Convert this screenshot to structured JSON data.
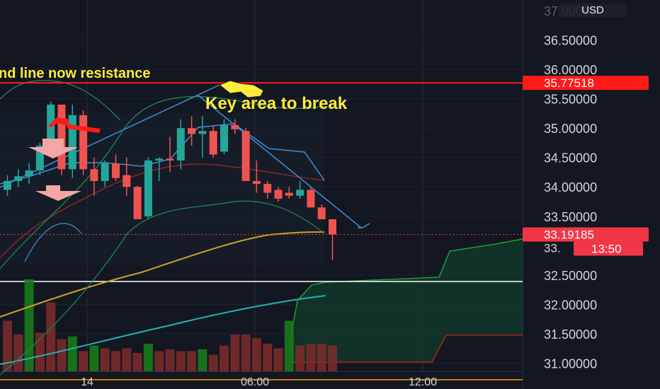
{
  "currency_button": "USD",
  "colors": {
    "background": "#131722",
    "bull_candle": "#26a69a",
    "bear_candle": "#ef5350",
    "resistance_line": "#ff1a1a",
    "annotation_text": "#ffeb3b",
    "trend_line": "#3f8fd6",
    "ma_orange": "#c9a227",
    "ma_teal": "#22b2b2",
    "cloud_fill": "#123a2b",
    "horizontal_line_white": "#ffffff",
    "horizontal_line_orange": "#ff9800",
    "current_price_label": "#f23645"
  },
  "annotations": {
    "trendline_text": "nd line now resistance",
    "key_area_text": "Key area to break"
  },
  "chart_data": {
    "type": "candlestick",
    "price_axis": {
      "range": [
        30.73,
        37.05
      ],
      "ticks": [
        "36.50000",
        "36.00000",
        "35.50000",
        "35.00000",
        "34.50000",
        "34.00000",
        "33.50000",
        "32.50000",
        "32.00000",
        "31.50000",
        "31.00000"
      ],
      "partial_top_tick": "37.00000"
    },
    "time_axis": {
      "ticks": [
        "14",
        "06:00",
        "12:00"
      ]
    },
    "resistance_level": {
      "value": 35.77,
      "label": "35.77518"
    },
    "current_price": {
      "value": 33.19,
      "label": "33.19185",
      "countdown": "13:50",
      "partial_label": "33."
    },
    "white_level": 32.39,
    "orange_level": 30.72,
    "candles": [
      {
        "o": 33.95,
        "h": 34.2,
        "l": 33.85,
        "c": 34.1
      },
      {
        "o": 34.1,
        "h": 34.3,
        "l": 34.0,
        "c": 34.18
      },
      {
        "o": 34.18,
        "h": 34.4,
        "l": 34.05,
        "c": 34.28
      },
      {
        "o": 34.28,
        "h": 34.75,
        "l": 34.2,
        "c": 34.7
      },
      {
        "o": 34.7,
        "h": 35.45,
        "l": 34.6,
        "c": 35.4
      },
      {
        "o": 35.4,
        "h": 35.4,
        "l": 34.2,
        "c": 34.3
      },
      {
        "o": 34.3,
        "h": 35.4,
        "l": 34.15,
        "c": 35.22
      },
      {
        "o": 35.22,
        "h": 35.3,
        "l": 34.2,
        "c": 34.3
      },
      {
        "o": 34.3,
        "h": 34.5,
        "l": 33.85,
        "c": 34.1
      },
      {
        "o": 34.1,
        "h": 34.45,
        "l": 34.0,
        "c": 34.4
      },
      {
        "o": 34.4,
        "h": 34.55,
        "l": 34.1,
        "c": 34.15
      },
      {
        "o": 34.2,
        "h": 34.5,
        "l": 33.85,
        "c": 34.0
      },
      {
        "o": 34.0,
        "h": 34.02,
        "l": 33.45,
        "c": 33.45
      },
      {
        "o": 33.5,
        "h": 34.5,
        "l": 33.45,
        "c": 34.45
      },
      {
        "o": 34.45,
        "h": 34.5,
        "l": 34.1,
        "c": 34.48
      },
      {
        "o": 34.48,
        "h": 34.85,
        "l": 34.25,
        "c": 34.45
      },
      {
        "o": 34.45,
        "h": 35.15,
        "l": 34.3,
        "c": 35.0
      },
      {
        "o": 35.0,
        "h": 35.2,
        "l": 34.7,
        "c": 34.9
      },
      {
        "o": 34.9,
        "h": 35.2,
        "l": 34.5,
        "c": 34.95
      },
      {
        "o": 34.95,
        "h": 35.05,
        "l": 34.5,
        "c": 34.55
      },
      {
        "o": 34.6,
        "h": 35.15,
        "l": 34.55,
        "c": 35.05
      },
      {
        "o": 35.05,
        "h": 35.15,
        "l": 34.9,
        "c": 34.98
      },
      {
        "o": 34.95,
        "h": 35.0,
        "l": 34.1,
        "c": 34.1
      },
      {
        "o": 34.1,
        "h": 34.45,
        "l": 33.9,
        "c": 34.05
      },
      {
        "o": 34.05,
        "h": 34.1,
        "l": 33.8,
        "c": 33.9
      },
      {
        "o": 33.95,
        "h": 34.0,
        "l": 33.75,
        "c": 33.8
      },
      {
        "o": 33.9,
        "h": 34.0,
        "l": 33.8,
        "c": 33.85
      },
      {
        "o": 33.85,
        "h": 34.1,
        "l": 33.8,
        "c": 33.95
      },
      {
        "o": 33.95,
        "h": 34.0,
        "l": 33.65,
        "c": 33.65
      },
      {
        "o": 33.65,
        "h": 33.7,
        "l": 33.45,
        "c": 33.45
      },
      {
        "o": 33.45,
        "h": 33.45,
        "l": 32.75,
        "c": 33.19
      }
    ],
    "volume": [
      0.55,
      0.4,
      1.0,
      0.42,
      0.75,
      0.35,
      0.38,
      0.22,
      0.28,
      0.25,
      0.22,
      0.25,
      0.2,
      0.3,
      0.22,
      0.24,
      0.22,
      0.22,
      0.24,
      0.18,
      0.28,
      0.4,
      0.4,
      0.36,
      0.3,
      0.25,
      0.55,
      0.28,
      0.3,
      0.3,
      0.28
    ],
    "volume_bull": [
      false,
      false,
      true,
      false,
      false,
      false,
      true,
      false,
      true,
      false,
      false,
      false,
      false,
      true,
      false,
      false,
      false,
      false,
      true,
      false,
      false,
      false,
      false,
      false,
      false,
      false,
      true,
      false,
      false,
      false,
      false
    ],
    "annotations": [
      "nd line now resistance",
      "Key area to break"
    ]
  }
}
